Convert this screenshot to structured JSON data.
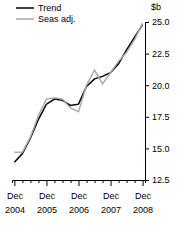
{
  "chart_data": {
    "type": "line",
    "y_label": "$b",
    "categories": [
      "Dec 2004",
      null,
      null,
      null,
      "Dec 2005",
      null,
      null,
      null,
      "Dec 2006",
      null,
      null,
      null,
      "Dec 2007",
      null,
      null,
      null,
      "Dec 2008"
    ],
    "series": [
      {
        "name": "Trend",
        "color": "#000000",
        "values": [
          13.9,
          14.6,
          15.8,
          17.3,
          18.5,
          18.9,
          18.8,
          18.4,
          18.5,
          19.9,
          20.5,
          20.7,
          21.0,
          21.7,
          22.8,
          23.8,
          24.8
        ]
      },
      {
        "name": "Seas adj.",
        "color": "#aaaaaa",
        "values": [
          14.7,
          14.7,
          15.9,
          17.6,
          18.9,
          19.0,
          18.9,
          18.2,
          17.9,
          20.0,
          21.2,
          20.1,
          21.0,
          21.9,
          22.6,
          23.6,
          24.9
        ]
      }
    ],
    "ylim": [
      12.5,
      25
    ],
    "yticks": [
      12.5,
      {
        "value": 15,
        "label": "15.0"
      },
      17.5,
      {
        "value": 20,
        "label": "20.0"
      },
      22.5,
      {
        "value": 25,
        "label": "25.0"
      }
    ],
    "legend": "top-left",
    "grid": false
  }
}
